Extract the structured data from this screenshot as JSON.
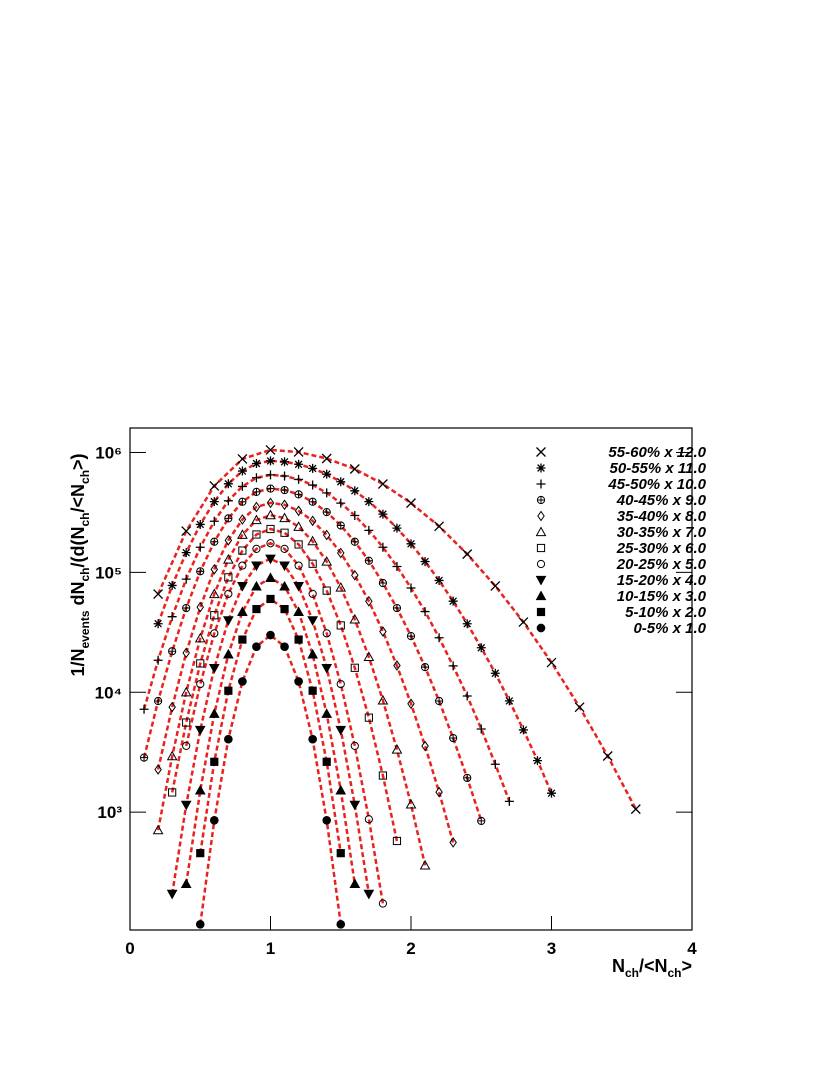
{
  "chart_data": {
    "type": "line",
    "xlabel": [
      {
        "text": "N"
      },
      {
        "text": "ch",
        "sub": true
      },
      {
        "text": "/<N"
      },
      {
        "text": "ch",
        "sub": true
      },
      {
        "text": ">"
      }
    ],
    "ylabel": [
      {
        "text": "1/N"
      },
      {
        "text": "events",
        "sub": true
      },
      {
        "text": " dN"
      },
      {
        "text": "ch",
        "sub": true
      },
      {
        "text": "/(d(N"
      },
      {
        "text": "ch",
        "sub": true
      },
      {
        "text": "/<N"
      },
      {
        "text": "ch",
        "sub": true
      },
      {
        "text": ">)"
      }
    ],
    "xlim": [
      0,
      4
    ],
    "xticks": [
      0,
      1,
      2,
      3,
      4
    ],
    "ylim": [
      104,
      1600000
    ],
    "log_y": true,
    "yticks": [
      {
        "value": 1000,
        "label": "10³"
      },
      {
        "value": 10000,
        "label": "10⁴"
      },
      {
        "value": 100000,
        "label": "10⁵"
      },
      {
        "value": 1000000,
        "label": "10⁶"
      }
    ],
    "fit_color": "#e8231f",
    "legend": "upper right",
    "series": [
      {
        "name": "55-60% x 12.0",
        "marker": "x",
        "color": "#000000",
        "x": [
          0.2,
          0.4,
          0.6,
          0.8,
          1.0,
          1.2,
          1.4,
          1.6,
          1.8,
          2.0,
          2.2,
          2.4,
          2.6,
          2.8,
          3.0,
          3.2,
          3.4,
          3.6
        ],
        "values": [
          65900,
          221000,
          526000,
          883000,
          1050000,
          1010000,
          891000,
          728000,
          546000,
          378000,
          242000,
          142000,
          77000,
          38500,
          17700,
          7510,
          2940,
          1060
        ]
      },
      {
        "name": "50-55% x 11.0",
        "marker": "asterisk",
        "color": "#000000",
        "x": [
          0.2,
          0.3,
          0.4,
          0.5,
          0.6,
          0.7,
          0.8,
          0.9,
          1.0,
          1.1,
          1.2,
          1.3,
          1.4,
          1.5,
          1.6,
          1.7,
          1.8,
          1.9,
          2.0,
          2.1,
          2.2,
          2.3,
          2.4,
          2.5,
          2.6,
          2.7,
          2.8,
          2.9,
          3.0
        ],
        "values": [
          37300,
          77800,
          146000,
          251000,
          389000,
          548000,
          700000,
          809000,
          850000,
          836000,
          797000,
          736000,
          659000,
          570000,
          479000,
          389000,
          306000,
          234000,
          173000,
          123000,
          85600,
          57500,
          37300,
          23500,
          14400,
          8470,
          4850,
          2690,
          1440
        ]
      },
      {
        "name": "45-50% x 10.0",
        "marker": "plus",
        "color": "#000000",
        "x": [
          0.1,
          0.2,
          0.3,
          0.4,
          0.5,
          0.6,
          0.7,
          0.8,
          0.9,
          1.0,
          1.1,
          1.2,
          1.3,
          1.4,
          1.5,
          1.6,
          1.7,
          1.8,
          1.9,
          2.0,
          2.1,
          2.2,
          2.3,
          2.4,
          2.5,
          2.6,
          2.7
        ],
        "values": [
          7220,
          18500,
          42700,
          87800,
          162000,
          267000,
          395000,
          521000,
          615000,
          650000,
          636000,
          596000,
          535000,
          460000,
          378000,
          298000,
          224000,
          162000,
          112000,
          74100,
          47100,
          28500,
          16600,
          9300,
          4940,
          2510,
          1230
        ]
      },
      {
        "name": "40-45% x 9.0",
        "marker": "circle-plus",
        "color": "#000000",
        "x": [
          0.1,
          0.2,
          0.3,
          0.4,
          0.5,
          0.6,
          0.7,
          0.8,
          0.9,
          1.0,
          1.1,
          1.2,
          1.3,
          1.4,
          1.5,
          1.6,
          1.7,
          1.8,
          1.9,
          2.0,
          2.1,
          2.2,
          2.3,
          2.4,
          2.5
        ],
        "values": [
          2850,
          8450,
          22000,
          50400,
          102000,
          180000,
          282000,
          388000,
          469000,
          500000,
          486000,
          447000,
          388000,
          318000,
          246000,
          180000,
          125000,
          81500,
          50400,
          29400,
          16200,
          8450,
          4150,
          1930,
          845
        ]
      },
      {
        "name": "35-40% x 8.0",
        "marker": "diamond-open",
        "color": "#000000",
        "x": [
          0.2,
          0.3,
          0.4,
          0.5,
          0.6,
          0.7,
          0.8,
          0.9,
          1.0,
          1.1,
          1.2,
          1.3,
          1.4,
          1.5,
          1.6,
          1.7,
          1.8,
          1.9,
          2.0,
          2.1,
          2.2,
          2.3
        ],
        "values": [
          2270,
          7520,
          21300,
          51300,
          106000,
          185000,
          276000,
          351000,
          380000,
          366000,
          326000,
          269000,
          205000,
          145000,
          94600,
          57400,
          32100,
          16700,
          8020,
          3560,
          1470,
          559
        ]
      },
      {
        "name": "30-35% x 7.0",
        "marker": "triangle-open",
        "color": "#000000",
        "x": [
          0.2,
          0.3,
          0.4,
          0.5,
          0.6,
          0.7,
          0.8,
          0.9,
          1.0,
          1.1,
          1.2,
          1.3,
          1.4,
          1.5,
          1.6,
          1.7,
          1.8,
          1.9,
          2.0,
          2.1
        ],
        "values": [
          708,
          2930,
          9990,
          28200,
          66000,
          128000,
          206000,
          273000,
          300000,
          284000,
          240000,
          182000,
          123000,
          74700,
          40500,
          19700,
          8550,
          3330,
          1160,
          360
        ]
      },
      {
        "name": "25-30% x 6.0",
        "marker": "square-open",
        "color": "#000000",
        "x": [
          0.3,
          0.4,
          0.5,
          0.6,
          0.7,
          0.8,
          0.9,
          1.0,
          1.1,
          1.2,
          1.3,
          1.4,
          1.5,
          1.6,
          1.7,
          1.8,
          1.9
        ],
        "values": [
          1460,
          5590,
          17400,
          43900,
          90900,
          152000,
          207000,
          230000,
          214000,
          171000,
          118000,
          70400,
          36100,
          16000,
          6140,
          2020,
          575
        ]
      },
      {
        "name": "20-25% x 5.0",
        "marker": "circle-open",
        "color": "#000000",
        "x": [
          0.4,
          0.5,
          0.6,
          0.7,
          0.8,
          0.9,
          1.0,
          1.1,
          1.2,
          1.3,
          1.4,
          1.5,
          1.6,
          1.7,
          1.8
        ],
        "values": [
          3570,
          11700,
          31000,
          66200,
          114000,
          157000,
          175000,
          157000,
          114000,
          66200,
          31000,
          11700,
          3570,
          873,
          173
        ]
      },
      {
        "name": "15-20% x 4.0",
        "marker": "triangle-down",
        "color": "#000000",
        "x": [
          0.3,
          0.4,
          0.5,
          0.6,
          0.7,
          0.8,
          0.9,
          1.0,
          1.1,
          1.2,
          1.3,
          1.4,
          1.5,
          1.6,
          1.7
        ],
        "values": [
          208,
          1150,
          4850,
          15900,
          39800,
          76800,
          114000,
          130000,
          114000,
          76800,
          39800,
          15900,
          4850,
          1150,
          208
        ]
      },
      {
        "name": "10-15% x 3.0",
        "marker": "triangle-up",
        "color": "#000000",
        "x": [
          0.4,
          0.5,
          0.6,
          0.7,
          0.8,
          0.9,
          1.0,
          1.1,
          1.2,
          1.3,
          1.4,
          1.5,
          1.6
        ],
        "values": [
          252,
          1520,
          6610,
          20700,
          46800,
          76400,
          90000,
          76400,
          46800,
          20700,
          6610,
          1520,
          252
        ]
      },
      {
        "name": "5-10% x 2.0",
        "marker": "square",
        "color": "#000000",
        "x": [
          0.5,
          0.6,
          0.7,
          0.8,
          0.9,
          1.0,
          1.1,
          1.2,
          1.3,
          1.4,
          1.5
        ],
        "values": [
          455,
          2630,
          10300,
          27500,
          49400,
          60000,
          49400,
          27500,
          10300,
          2630,
          455
        ]
      },
      {
        "name": "0-5% x 1.0",
        "marker": "circle",
        "color": "#000000",
        "x": [
          0.5,
          0.6,
          0.7,
          0.8,
          0.9,
          1.0,
          1.1,
          1.2,
          1.3,
          1.4,
          1.5
        ],
        "values": [
          116,
          855,
          4060,
          12300,
          24000,
          30000,
          24000,
          12300,
          4060,
          855,
          116
        ]
      }
    ]
  }
}
